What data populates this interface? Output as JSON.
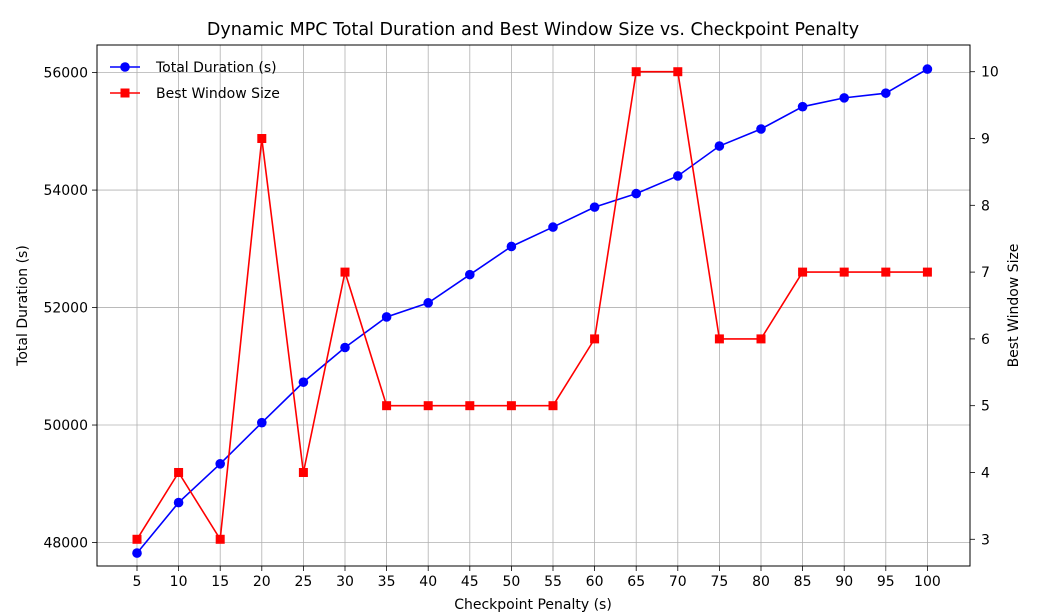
{
  "chart_data": {
    "type": "line",
    "title": "Dynamic MPC Total Duration and Best Window Size vs. Checkpoint Penalty",
    "xlabel": "Checkpoint Penalty (s)",
    "ylabel_left": "Total Duration (s)",
    "ylabel_right": "Best Window Size",
    "x": [
      5,
      10,
      15,
      20,
      25,
      30,
      35,
      40,
      45,
      50,
      55,
      60,
      65,
      70,
      75,
      80,
      85,
      90,
      95,
      100
    ],
    "xticks": [
      "5",
      "10",
      "15",
      "20",
      "25",
      "30",
      "35",
      "40",
      "45",
      "50",
      "55",
      "60",
      "65",
      "70",
      "75",
      "80",
      "85",
      "90",
      "95",
      "100"
    ],
    "ylim_left": [
      47600,
      56470
    ],
    "yticks_left": [
      48000,
      50000,
      52000,
      54000,
      56000
    ],
    "ylim_right": [
      2.6,
      10.4
    ],
    "yticks_right": [
      3,
      4,
      5,
      6,
      7,
      8,
      9,
      10
    ],
    "grid": true,
    "legend_position": "top-left",
    "series": [
      {
        "name": "Total Duration (s)",
        "axis": "left",
        "color": "#0000ff",
        "marker": "circle",
        "values": [
          47820,
          48680,
          49340,
          50040,
          50730,
          51320,
          51840,
          52080,
          52560,
          53040,
          53370,
          53710,
          53940,
          54240,
          54750,
          55040,
          55420,
          55570,
          55650,
          56060
        ]
      },
      {
        "name": "Best Window Size",
        "axis": "right",
        "color": "#ff0000",
        "marker": "square",
        "values": [
          3,
          4,
          3,
          9,
          4,
          7,
          5,
          5,
          5,
          5,
          5,
          6,
          10,
          10,
          6,
          6,
          7,
          7,
          7,
          7
        ]
      }
    ]
  }
}
